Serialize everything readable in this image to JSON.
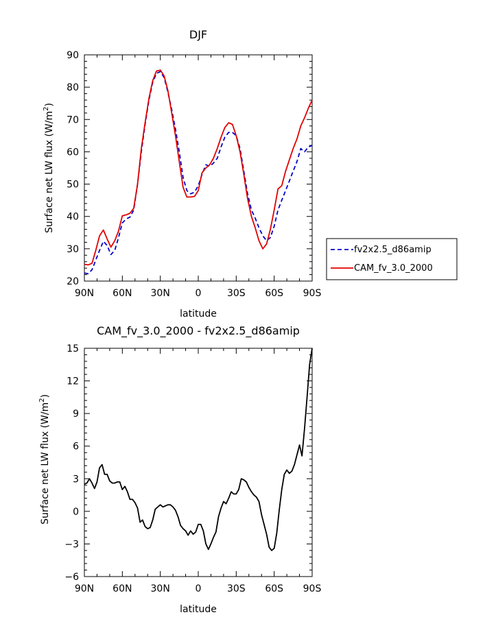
{
  "chart_data": [
    {
      "type": "line",
      "title": "DJF",
      "xlabel": "latitude",
      "ylabel": "Surface net LW flux (W/m",
      "ylabel_sup": "2",
      "ylabel_close": ")",
      "xlim": [
        90,
        -90
      ],
      "ylim": [
        20,
        90
      ],
      "x_ticks": [
        90,
        60,
        30,
        0,
        -30,
        -60,
        -90
      ],
      "x_tick_labels": [
        "90N",
        "60N",
        "30N",
        "0",
        "30S",
        "60S",
        "90S"
      ],
      "y_ticks": [
        20,
        30,
        40,
        50,
        60,
        70,
        80,
        90
      ],
      "y_tick_labels": [
        "20",
        "30",
        "40",
        "50",
        "60",
        "70",
        "80",
        "90"
      ],
      "legend_position": "right",
      "series": [
        {
          "name": "fv2x2.5_d86amip",
          "color": "#0000cc",
          "dash": "dashed",
          "x": [
            90,
            87,
            84,
            81,
            78,
            75,
            72,
            69,
            66,
            63,
            60,
            57,
            54,
            51,
            48,
            45,
            42,
            39,
            36,
            33,
            30,
            27,
            24,
            21,
            18,
            15,
            12,
            9,
            6,
            3,
            0,
            -3,
            -6,
            -9,
            -12,
            -15,
            -18,
            -21,
            -24,
            -27,
            -30,
            -33,
            -36,
            -39,
            -42,
            -45,
            -48,
            -51,
            -54,
            -57,
            -60,
            -63,
            -66,
            -69,
            -72,
            -75,
            -78,
            -81,
            -84,
            -87,
            -90
          ],
          "values": [
            22.5,
            22.3,
            23.5,
            26.5,
            29.5,
            32.3,
            31.0,
            28.2,
            29.5,
            33.5,
            38.0,
            39.2,
            39.8,
            42.0,
            50.0,
            60.0,
            68.5,
            76.0,
            81.5,
            84.3,
            84.8,
            83.0,
            78.5,
            73.0,
            67.0,
            60.0,
            52.0,
            48.0,
            47.0,
            47.5,
            49.5,
            53.0,
            56.0,
            55.5,
            56.5,
            58.0,
            61.5,
            64.5,
            66.0,
            66.0,
            65.0,
            61.0,
            54.0,
            47.0,
            42.0,
            39.5,
            36.5,
            34.0,
            32.5,
            33.5,
            37.0,
            42.0,
            45.0,
            48.0,
            51.0,
            54.0,
            57.0,
            61.0,
            60.0,
            61.5,
            62.0
          ]
        },
        {
          "name": "CAM_fv_3.0_2000",
          "color": "#e00000",
          "dash": "solid",
          "x": [
            90,
            87,
            84,
            81,
            78,
            75,
            72,
            69,
            66,
            63,
            60,
            57,
            54,
            51,
            48,
            45,
            42,
            39,
            36,
            33,
            30,
            27,
            24,
            21,
            18,
            15,
            12,
            9,
            6,
            3,
            0,
            -3,
            -6,
            -9,
            -12,
            -15,
            -18,
            -21,
            -24,
            -27,
            -30,
            -33,
            -36,
            -39,
            -42,
            -45,
            -48,
            -51,
            -54,
            -57,
            -60,
            -63,
            -66,
            -69,
            -72,
            -75,
            -78,
            -81,
            -84,
            -87,
            -90
          ],
          "values": [
            25.2,
            25.0,
            25.5,
            29.5,
            34.0,
            35.8,
            33.0,
            30.5,
            32.5,
            35.5,
            40.2,
            40.5,
            41.0,
            42.5,
            50.0,
            61.0,
            69.0,
            76.5,
            82.0,
            85.0,
            85.3,
            83.5,
            79.0,
            72.0,
            65.0,
            57.0,
            49.0,
            46.0,
            46.0,
            46.2,
            48.0,
            53.5,
            55.0,
            56.0,
            58.0,
            61.0,
            64.5,
            67.5,
            69.0,
            68.5,
            65.0,
            60.0,
            53.0,
            45.5,
            40.0,
            36.5,
            32.5,
            30.0,
            31.5,
            36.0,
            42.0,
            48.5,
            49.5,
            54.0,
            57.5,
            61.0,
            64.0,
            68.0,
            70.5,
            73.5,
            76.0
          ]
        }
      ]
    },
    {
      "type": "line",
      "title": "CAM_fv_3.0_2000 - fv2x2.5_d86amip",
      "xlabel": "latitude",
      "ylabel": "Surface net LW flux (W/m",
      "ylabel_sup": "2",
      "ylabel_close": ")",
      "xlim": [
        90,
        -90
      ],
      "ylim": [
        -6,
        15
      ],
      "x_ticks": [
        90,
        60,
        30,
        0,
        -30,
        -60,
        -90
      ],
      "x_tick_labels": [
        "90N",
        "60N",
        "30N",
        "0",
        "30S",
        "60S",
        "90S"
      ],
      "y_ticks": [
        -6,
        -3,
        0,
        3,
        6,
        9,
        12,
        15
      ],
      "y_tick_labels": [
        "−6",
        "−3",
        "0",
        "3",
        "6",
        "9",
        "12",
        "15"
      ],
      "series": [
        {
          "name": "CAM_fv_3.0_2000 - fv2x2.5_d86amip",
          "color": "#000000",
          "dash": "solid",
          "x": [
            90,
            88,
            86,
            84,
            82,
            80,
            78,
            76,
            74,
            72,
            70,
            68,
            66,
            64,
            62,
            60,
            58,
            56,
            54,
            52,
            50,
            48,
            46,
            44,
            42,
            40,
            38,
            36,
            34,
            32,
            30,
            28,
            26,
            24,
            22,
            20,
            18,
            16,
            14,
            12,
            10,
            8,
            6,
            4,
            2,
            0,
            -2,
            -4,
            -6,
            -8,
            -10,
            -12,
            -14,
            -16,
            -18,
            -20,
            -22,
            -24,
            -26,
            -28,
            -30,
            -32,
            -34,
            -36,
            -38,
            -40,
            -42,
            -44,
            -46,
            -48,
            -50,
            -52,
            -54,
            -56,
            -58,
            -60,
            -62,
            -64,
            -66,
            -68,
            -70,
            -72,
            -74,
            -76,
            -78,
            -80,
            -82,
            -84,
            -86,
            -88,
            -90
          ],
          "values": [
            2.5,
            2.6,
            3.0,
            2.6,
            2.1,
            2.7,
            4.0,
            4.3,
            3.4,
            3.4,
            2.8,
            2.6,
            2.6,
            2.7,
            2.7,
            2.0,
            2.3,
            1.8,
            1.1,
            1.1,
            0.8,
            0.3,
            -1.0,
            -0.8,
            -1.4,
            -1.6,
            -1.5,
            -0.8,
            0.2,
            0.4,
            0.6,
            0.4,
            0.5,
            0.6,
            0.6,
            0.4,
            0.1,
            -0.5,
            -1.3,
            -1.6,
            -1.8,
            -2.2,
            -1.8,
            -2.1,
            -1.9,
            -1.2,
            -1.2,
            -1.8,
            -3.0,
            -3.5,
            -3.0,
            -2.4,
            -1.9,
            -0.5,
            0.3,
            0.9,
            0.7,
            1.2,
            1.8,
            1.6,
            1.6,
            2.0,
            3.0,
            2.9,
            2.7,
            2.2,
            1.8,
            1.5,
            1.3,
            0.9,
            -0.3,
            -1.2,
            -2.1,
            -3.3,
            -3.6,
            -3.4,
            -2.0,
            0.1,
            2.0,
            3.4,
            3.8,
            3.5,
            3.7,
            4.3,
            5.2,
            6.1,
            5.1,
            7.6,
            10.5,
            13.5,
            15.0
          ]
        }
      ]
    }
  ]
}
